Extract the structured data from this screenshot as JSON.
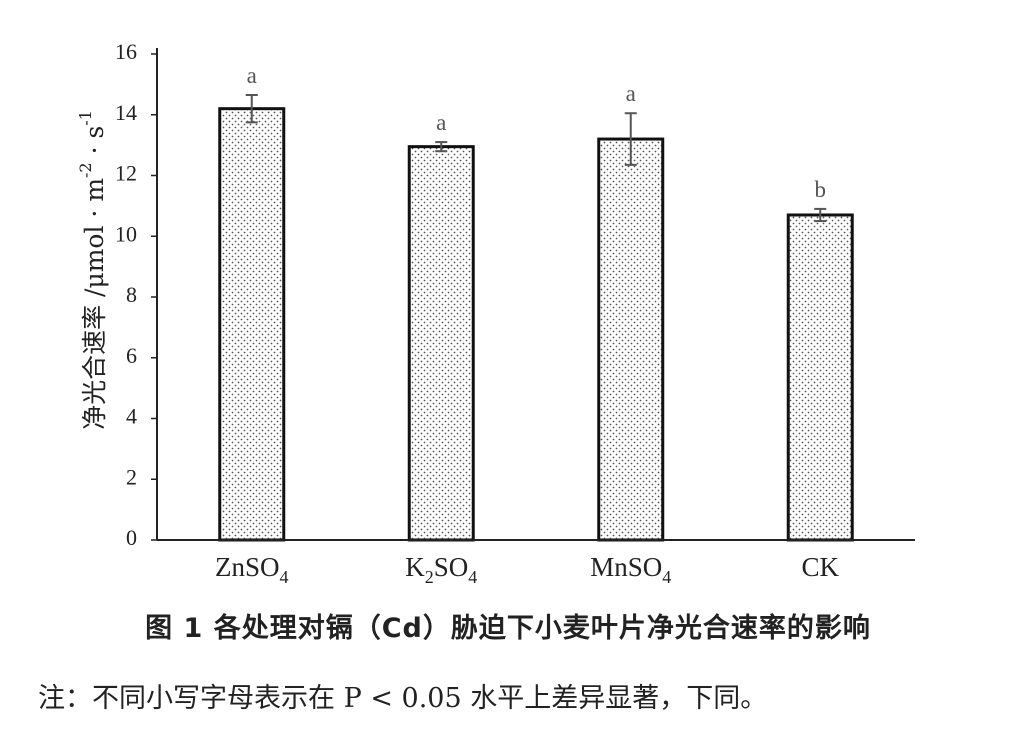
{
  "chart_data": {
    "type": "bar",
    "categories": [
      "ZnSO4",
      "K2SO4",
      "MnSO4",
      "CK"
    ],
    "category_labels": [
      {
        "base": "ZnSO",
        "pre": "",
        "sub": "4",
        "post": ""
      },
      {
        "base": "K",
        "pre": "",
        "sub": "2",
        "post": "SO4"
      },
      {
        "base": "MnSO",
        "pre": "",
        "sub": "4",
        "post": ""
      },
      {
        "base": "CK",
        "pre": "",
        "sub": "",
        "post": ""
      }
    ],
    "values": [
      14.2,
      12.95,
      13.2,
      10.7
    ],
    "errors": [
      0.45,
      0.15,
      0.85,
      0.2
    ],
    "significance": [
      "a",
      "a",
      "a",
      "b"
    ],
    "ylabel": "净光合速率 /μmol · m⁻² · s⁻¹",
    "ylim": [
      0,
      16
    ],
    "yticks": [
      0,
      2,
      4,
      6,
      8,
      10,
      12,
      14,
      16
    ],
    "grid": false,
    "bar_pattern": "dotted"
  },
  "caption": "图 1  各处理对镉（Cd）胁迫下小麦叶片净光合速率的影响",
  "note": "注：不同小写字母表示在 P < 0.05 水平上差异显著，下同。"
}
